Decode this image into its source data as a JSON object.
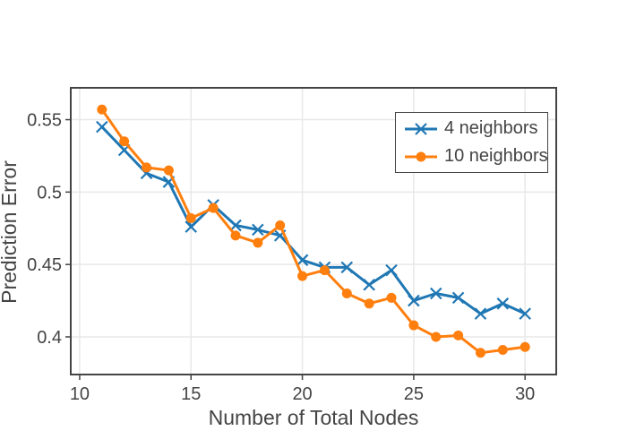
{
  "chart_data": {
    "type": "line",
    "title": "",
    "xlabel": "Number of Total Nodes",
    "ylabel": "Prediction Error",
    "x": [
      11,
      12,
      13,
      14,
      15,
      16,
      17,
      18,
      19,
      20,
      21,
      22,
      23,
      24,
      25,
      26,
      27,
      28,
      29,
      30
    ],
    "series": [
      {
        "name": "4 neighbors",
        "color": "#1f77b4",
        "marker": "x",
        "values": [
          0.545,
          0.529,
          0.513,
          0.507,
          0.476,
          0.491,
          0.477,
          0.474,
          0.47,
          0.453,
          0.448,
          0.448,
          0.436,
          0.446,
          0.425,
          0.43,
          0.427,
          0.416,
          0.423,
          0.416
        ]
      },
      {
        "name": "10 neighbors",
        "color": "#ff7f0e",
        "marker": "circle",
        "values": [
          0.557,
          0.535,
          0.517,
          0.515,
          0.482,
          0.489,
          0.47,
          0.465,
          0.477,
          0.442,
          0.446,
          0.43,
          0.423,
          0.427,
          0.408,
          0.4,
          0.401,
          0.389,
          0.391,
          0.393
        ]
      }
    ],
    "xlim": [
      9.6,
      31.4
    ],
    "ylim": [
      0.374,
      0.572
    ],
    "xticks": [
      10,
      15,
      20,
      25,
      30
    ],
    "xtick_labels": [
      "10",
      "15",
      "20",
      "25",
      "30"
    ],
    "yticks": [
      0.4,
      0.45,
      0.5,
      0.55
    ],
    "ytick_labels": [
      "0.4",
      "0.45",
      "0.5",
      "0.55"
    ],
    "grid": true,
    "legend_position": "top-right"
  },
  "style": {
    "background_color": "#ffffff",
    "axis_color": "#444444",
    "grid_color": "#e8e8e8",
    "tick_label_color": "#444444",
    "title_color": "#444444",
    "legend_border_color": "#444444",
    "legend_bg_color": "#ffffff"
  }
}
